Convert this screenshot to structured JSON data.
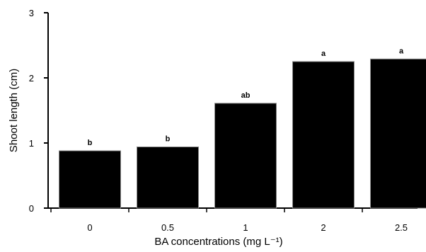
{
  "chart_data": {
    "type": "bar",
    "categories": [
      "0",
      "0.5",
      "1",
      "2",
      "2.5"
    ],
    "values": [
      0.88,
      0.94,
      1.61,
      2.25,
      2.29
    ],
    "bar_labels": [
      "b",
      "b",
      "ab",
      "a",
      "a"
    ],
    "xlabel": "BA concentrations (mg L⁻¹)",
    "ylabel": "Shoot length (cm)",
    "ylim": [
      0,
      3
    ],
    "yticks": [
      "0",
      "1",
      "2",
      "3"
    ],
    "grid": false,
    "legend": false,
    "bar_color": "#000000"
  }
}
